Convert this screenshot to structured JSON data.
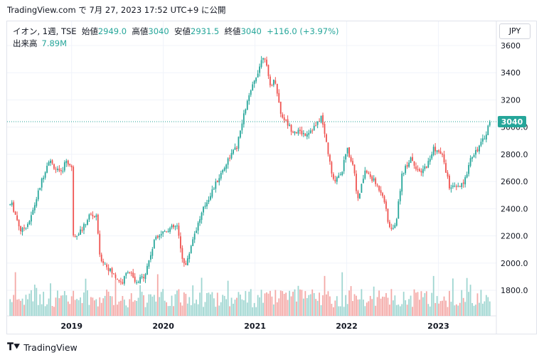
{
  "header": {
    "source_line": "TradingView.com で 7月 27, 2023 17:52 UTC+9 に公開"
  },
  "legend": {
    "symbol": "イオン, 1週, TSE",
    "open_label": "始値",
    "open": "2949.0",
    "high_label": "高値",
    "high": "3040",
    "low_label": "安値",
    "low": "2931.5",
    "close_label": "終値",
    "close": "3040",
    "change": "+116.0 (+3.97%)",
    "volume_label": "出来高",
    "volume": "7.89M"
  },
  "currency_button": "JPY",
  "footer": {
    "brand": "TradingView",
    "logo_icon": "tradingview-logo-icon"
  },
  "colors": {
    "up": "#26a69a",
    "down": "#ef5350",
    "up_vol": "#9fd6d1",
    "down_vol": "#f4a9a7",
    "grid": "#f0f3fa"
  },
  "chart_data": {
    "type": "candlestick",
    "title": "イオン, 1週, TSE",
    "y_ticks": [
      "1800.0",
      "2000.0",
      "2200.0",
      "2400.0",
      "2600.0",
      "2800.0",
      "3000.0",
      "3200",
      "3400",
      "3600"
    ],
    "x_ticks": [
      "2019",
      "2020",
      "2021",
      "2022",
      "2023"
    ],
    "ylim": [
      1640,
      3700
    ],
    "last_price": "3040",
    "last_value": 3040,
    "grid": true,
    "price_path": [
      {
        "t": 2018.35,
        "v": 2430
      },
      {
        "t": 2018.45,
        "v": 2230
      },
      {
        "t": 2018.55,
        "v": 2320
      },
      {
        "t": 2018.68,
        "v": 2620
      },
      {
        "t": 2018.75,
        "v": 2760
      },
      {
        "t": 2018.88,
        "v": 2650
      },
      {
        "t": 2018.94,
        "v": 2760
      },
      {
        "t": 2019.0,
        "v": 2700
      },
      {
        "t": 2019.02,
        "v": 2200
      },
      {
        "t": 2019.12,
        "v": 2250
      },
      {
        "t": 2019.2,
        "v": 2360
      },
      {
        "t": 2019.28,
        "v": 2330
      },
      {
        "t": 2019.3,
        "v": 2050
      },
      {
        "t": 2019.45,
        "v": 1920
      },
      {
        "t": 2019.55,
        "v": 1850
      },
      {
        "t": 2019.62,
        "v": 1960
      },
      {
        "t": 2019.7,
        "v": 1840
      },
      {
        "t": 2019.8,
        "v": 1920
      },
      {
        "t": 2019.92,
        "v": 2200
      },
      {
        "t": 2020.05,
        "v": 2250
      },
      {
        "t": 2020.15,
        "v": 2270
      },
      {
        "t": 2020.2,
        "v": 2050
      },
      {
        "t": 2020.25,
        "v": 1980
      },
      {
        "t": 2020.32,
        "v": 2180
      },
      {
        "t": 2020.45,
        "v": 2420
      },
      {
        "t": 2020.6,
        "v": 2620
      },
      {
        "t": 2020.72,
        "v": 2780
      },
      {
        "t": 2020.8,
        "v": 2850
      },
      {
        "t": 2020.9,
        "v": 3150
      },
      {
        "t": 2021.0,
        "v": 3350
      },
      {
        "t": 2021.1,
        "v": 3550
      },
      {
        "t": 2021.16,
        "v": 3300
      },
      {
        "t": 2021.22,
        "v": 3350
      },
      {
        "t": 2021.28,
        "v": 3100
      },
      {
        "t": 2021.4,
        "v": 2980
      },
      {
        "t": 2021.55,
        "v": 2950
      },
      {
        "t": 2021.68,
        "v": 3020
      },
      {
        "t": 2021.72,
        "v": 3080
      },
      {
        "t": 2021.78,
        "v": 2880
      },
      {
        "t": 2021.85,
        "v": 2600
      },
      {
        "t": 2021.95,
        "v": 2680
      },
      {
        "t": 2022.0,
        "v": 2850
      },
      {
        "t": 2022.08,
        "v": 2700
      },
      {
        "t": 2022.12,
        "v": 2450
      },
      {
        "t": 2022.2,
        "v": 2680
      },
      {
        "t": 2022.3,
        "v": 2600
      },
      {
        "t": 2022.4,
        "v": 2500
      },
      {
        "t": 2022.45,
        "v": 2300
      },
      {
        "t": 2022.5,
        "v": 2230
      },
      {
        "t": 2022.55,
        "v": 2350
      },
      {
        "t": 2022.6,
        "v": 2650
      },
      {
        "t": 2022.7,
        "v": 2780
      },
      {
        "t": 2022.8,
        "v": 2650
      },
      {
        "t": 2022.9,
        "v": 2750
      },
      {
        "t": 2022.95,
        "v": 2850
      },
      {
        "t": 2023.05,
        "v": 2780
      },
      {
        "t": 2023.12,
        "v": 2560
      },
      {
        "t": 2023.2,
        "v": 2550
      },
      {
        "t": 2023.28,
        "v": 2580
      },
      {
        "t": 2023.35,
        "v": 2780
      },
      {
        "t": 2023.45,
        "v": 2860
      },
      {
        "t": 2023.5,
        "v": 2920
      },
      {
        "t": 2023.56,
        "v": 3040
      }
    ]
  }
}
